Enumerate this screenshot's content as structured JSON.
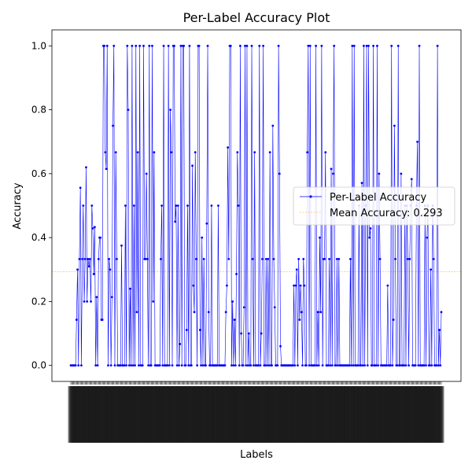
{
  "chart_data": {
    "type": "line",
    "title": "Per-Label Accuracy Plot",
    "xlabel": "Labels",
    "ylabel": "Accuracy",
    "ylim": [
      -0.05,
      1.05
    ],
    "yticks": [
      "0.0",
      "0.2",
      "0.4",
      "0.6",
      "0.8",
      "1.0"
    ],
    "ytick_values": [
      0,
      0.2,
      0.4,
      0.6,
      0.8,
      1.0
    ],
    "grid": false,
    "legend_placement": "center-right",
    "x_tick_labels": "dense, rotated, illegible category labels",
    "series": [
      {
        "name": "Per-Label Accuracy",
        "color": "#0000ff",
        "values": [
          0,
          0,
          0,
          0,
          0,
          0,
          0.143,
          0.3,
          0,
          0.333,
          0.556,
          0,
          0.333,
          0.5,
          0.2,
          0.333,
          0.62,
          0.2,
          0.333,
          0.31,
          0.333,
          0.2,
          0.5,
          0.429,
          0.286,
          0.433,
          0,
          0.214,
          0,
          0.333,
          0.4,
          0.4,
          0.143,
          0.143,
          1.0,
          1.0,
          0.667,
          0.615,
          1.0,
          0,
          0.333,
          0.3,
          0,
          0.214,
          0.75,
          1.0,
          0,
          0.667,
          0.333,
          0,
          0,
          0,
          0,
          0.375,
          0,
          0,
          0,
          0.5,
          0,
          1.0,
          0.8,
          0,
          0.24,
          0,
          1.0,
          0,
          0.5,
          0,
          1.0,
          0.167,
          0.667,
          0,
          1.0,
          0,
          0,
          0,
          1.0,
          0.333,
          0.333,
          0.6,
          0.333,
          0,
          1.0,
          0,
          0,
          1.0,
          0.2,
          0.667,
          0,
          0,
          0,
          0,
          0,
          0,
          0.333,
          0.5,
          0,
          1.0,
          0,
          0,
          0,
          0,
          1.0,
          0,
          0.8,
          0.667,
          0,
          1.0,
          1.0,
          0.45,
          0.5,
          0,
          0.5,
          0,
          0.067,
          1.0,
          0,
          1.0,
          1.0,
          0,
          0,
          0.111,
          0.5,
          0,
          1.0,
          0,
          0,
          0.625,
          0.25,
          0.167,
          0.667,
          0.333,
          0,
          1.0,
          1.0,
          0.111,
          0,
          0.4,
          0,
          0.333,
          0,
          0,
          0.444,
          1.0,
          0.167,
          0,
          0,
          0.5,
          0,
          0,
          0,
          0,
          0,
          0,
          0.5,
          0,
          0,
          0,
          0,
          0,
          0,
          0,
          0.167,
          0.25,
          0.682,
          0.333,
          1.0,
          1.0,
          0,
          0.2,
          0,
          0.143,
          0,
          0.286,
          0.667,
          0.5,
          0,
          1.0,
          0.1,
          0,
          0,
          0.182,
          1.0,
          0,
          1.0,
          0,
          0.1,
          0,
          0,
          1.0,
          0.333,
          0,
          0.667,
          0,
          0,
          0,
          0,
          1.0,
          0,
          0.1,
          0.333,
          1.0,
          0,
          0,
          0.333,
          0,
          0.333,
          0,
          0.667,
          0,
          0,
          0.75,
          0.333,
          0.182,
          0,
          0,
          0,
          1.0,
          0.6,
          0.06,
          0,
          0,
          0,
          0,
          0,
          0,
          0,
          0,
          0,
          0,
          0,
          0,
          0,
          0.25,
          0,
          0.25,
          0.3,
          0,
          0.333,
          0.143,
          0.25,
          0.167,
          0,
          0.333,
          0.25,
          0,
          0,
          0.667,
          1.0,
          0,
          1.0,
          0,
          0,
          0,
          0,
          0,
          1.0,
          0,
          0.167,
          0,
          0.4,
          0.167,
          1.0,
          0,
          0.333,
          0.333,
          0.667,
          0,
          0,
          0,
          0.333,
          0,
          0.615,
          0,
          0.6,
          1.0,
          0,
          0,
          0.333,
          0,
          0.333,
          0,
          0,
          0,
          0,
          0,
          0,
          0,
          0,
          0,
          0,
          0,
          0.333,
          0,
          1.0,
          0,
          1.0,
          0,
          0,
          0,
          0,
          0.5,
          0,
          0,
          0.571,
          0,
          1.0,
          0,
          0.5,
          1.0,
          0,
          1.0,
          0.4,
          0.429,
          0,
          0,
          1.0,
          0,
          0,
          0,
          1.0,
          0,
          0.6,
          0.333,
          0,
          0,
          0,
          0,
          0,
          0,
          0,
          0.25,
          0,
          0,
          0,
          1.0,
          0,
          0.143,
          0.75,
          0.333,
          0,
          0,
          1.0,
          0,
          0,
          0.6,
          0,
          0,
          0,
          0.5,
          0,
          0.5,
          0.333,
          0,
          0.333,
          0.5,
          0.583,
          0,
          0,
          0,
          0,
          0.5,
          0.7,
          0,
          1.0,
          0,
          0,
          0,
          0,
          0,
          0.5,
          0,
          0.4,
          0.5,
          0,
          0,
          0.3,
          0,
          0.5,
          0.333,
          0,
          0,
          0,
          1.0,
          0,
          0.111,
          0,
          0.167
        ]
      },
      {
        "name": "Mean Accuracy: 0.293",
        "color": "#ffa500",
        "value": 0.293
      }
    ]
  }
}
